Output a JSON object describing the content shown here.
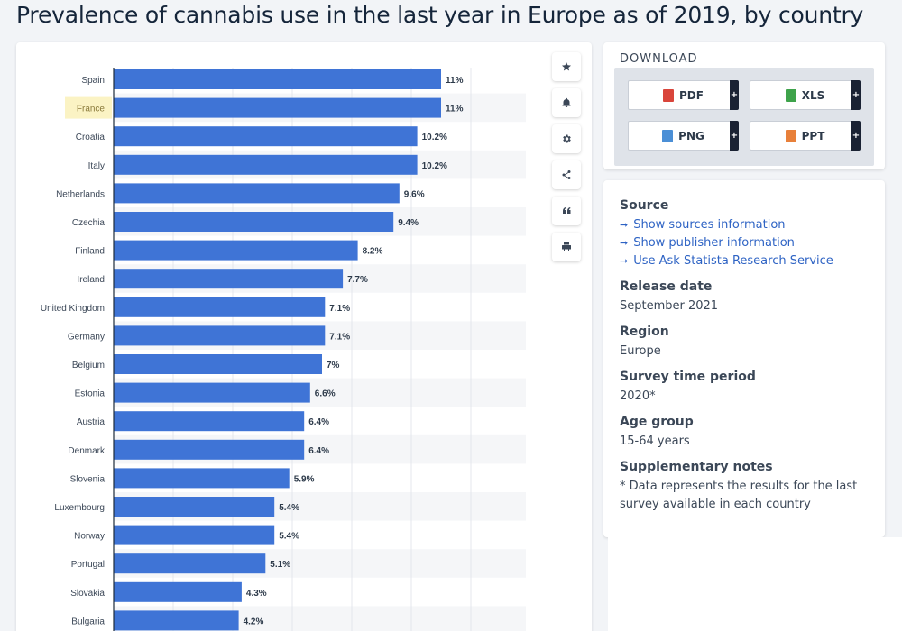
{
  "page": {
    "title": "Prevalence of cannabis use in the last year in Europe as of 2019, by country"
  },
  "toolbar": {
    "buttons": [
      {
        "icon": "star-icon"
      },
      {
        "icon": "bell-icon"
      },
      {
        "icon": "gear-icon"
      },
      {
        "icon": "share-icon"
      },
      {
        "icon": "quote-icon"
      },
      {
        "icon": "print-icon"
      }
    ]
  },
  "download": {
    "title": "DOWNLOAD",
    "buttons": [
      {
        "label": "PDF",
        "plus": "+",
        "icon": "pdf-icon",
        "color": "#d9453b"
      },
      {
        "label": "XLS",
        "plus": "+",
        "icon": "xls-icon",
        "color": "#3ea34b"
      },
      {
        "label": "PNG",
        "plus": "+",
        "icon": "png-icon",
        "color": "#4b8fd6"
      },
      {
        "label": "PPT",
        "plus": "+",
        "icon": "ppt-icon",
        "color": "#e8803a"
      }
    ]
  },
  "info": {
    "source_heading": "Source",
    "source_links": [
      "Show sources information",
      "Show publisher information",
      "Use Ask Statista Research Service"
    ],
    "release_heading": "Release date",
    "release_value": "September 2021",
    "region_heading": "Region",
    "region_value": "Europe",
    "survey_heading": "Survey time period",
    "survey_value": "2020*",
    "age_heading": "Age group",
    "age_value": "15-64 years",
    "notes_heading": "Supplementary notes",
    "notes_value": "* Data represents the results for the last survey available in each country"
  },
  "colors": {
    "bar": "#3f74d6",
    "highlight": "#fbf3c4",
    "link": "#2e63c4"
  },
  "chart_data": {
    "type": "bar",
    "orientation": "horizontal",
    "categories": [
      "Spain",
      "France",
      "Croatia",
      "Italy",
      "Netherlands",
      "Czechia",
      "Finland",
      "Ireland",
      "United Kingdom",
      "Germany",
      "Belgium",
      "Estonia",
      "Austria",
      "Denmark",
      "Slovenia",
      "Luxembourg",
      "Norway",
      "Portugal",
      "Slovakia",
      "Bulgaria"
    ],
    "values": [
      11,
      11,
      10.2,
      10.2,
      9.6,
      9.4,
      8.2,
      7.7,
      7.1,
      7.1,
      7,
      6.6,
      6.4,
      6.4,
      5.9,
      5.4,
      5.4,
      5.1,
      4.3,
      4.2
    ],
    "labels": [
      "11%",
      "11%",
      "10.2%",
      "10.2%",
      "9.6%",
      "9.4%",
      "8.2%",
      "7.7%",
      "7.1%",
      "7.1%",
      "7%",
      "6.6%",
      "6.4%",
      "6.4%",
      "5.9%",
      "5.4%",
      "5.4%",
      "5.1%",
      "4.3%",
      "4.2%"
    ],
    "highlighted_category": "France",
    "xlim": [
      0,
      14
    ],
    "grid": true
  }
}
